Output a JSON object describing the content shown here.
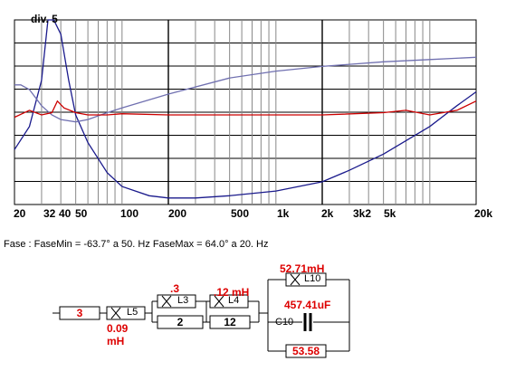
{
  "chart_data": {
    "type": "line",
    "title": "",
    "xlabel": "",
    "ylabel": "",
    "x_scale": "log",
    "xlim": [
      20,
      20000
    ],
    "annotation": "div. 5",
    "x_tick_labels": [
      "20",
      "32",
      "40",
      "50",
      "100",
      "200",
      "500",
      "1k",
      "2k",
      "3k2",
      "5k",
      "20k"
    ],
    "grid": true,
    "series": [
      {
        "color": "#1a1a8c",
        "x": [
          20,
          25,
          30,
          33,
          36,
          40,
          45,
          50,
          60,
          80,
          100,
          150,
          200,
          300,
          500,
          1000,
          2000,
          3000,
          5000,
          10000,
          15000,
          20000
        ],
        "y_divs": [
          -1.5,
          -0.5,
          1.5,
          4.5,
          5.5,
          3.5,
          1.5,
          0.0,
          -1.2,
          -2.5,
          -3.1,
          -3.5,
          -3.6,
          -3.6,
          -3.5,
          -3.3,
          -2.9,
          -2.4,
          -1.7,
          -0.5,
          0.4,
          1.0
        ]
      },
      {
        "color": "#7070b0",
        "x": [
          20,
          22,
          25,
          30,
          35,
          40,
          50,
          60,
          80,
          100,
          200,
          500,
          1000,
          2000,
          5000,
          10000,
          20000
        ],
        "y_divs": [
          1.3,
          1.3,
          1.1,
          0.4,
          0.0,
          -0.2,
          -0.3,
          -0.2,
          0.1,
          0.3,
          0.9,
          1.6,
          1.9,
          2.1,
          2.3,
          2.4,
          2.5
        ]
      },
      {
        "color": "#cc0000",
        "x": [
          20,
          25,
          30,
          35,
          38,
          42,
          50,
          60,
          80,
          100,
          200,
          500,
          1000,
          2000,
          5000,
          7000,
          10000,
          15000,
          20000
        ],
        "y_divs": [
          -0.1,
          0.2,
          0.0,
          0.1,
          0.6,
          0.3,
          0.1,
          0.0,
          0.0,
          0.05,
          0.0,
          0.0,
          0.0,
          0.0,
          0.1,
          0.2,
          0.0,
          0.2,
          0.6
        ]
      }
    ]
  },
  "phase_text": "Fase : FaseMin = -63.7° a 50. Hz  FaseMax = 64.0° a 20. Hz",
  "circuit": {
    "r_series": "3",
    "l5_name": "L5",
    "l5_value": "0.09 mH",
    "l3_name": "L3",
    "l3_value": ".3",
    "r2": "2",
    "l4_name": "L4",
    "l4_value": ".12 mH",
    "r12": "12",
    "l10_name": "L10",
    "l10_value": "52.71mH",
    "c10_name": "C10",
    "c10_value": "457.41uF",
    "r_shunt": "53.58"
  }
}
